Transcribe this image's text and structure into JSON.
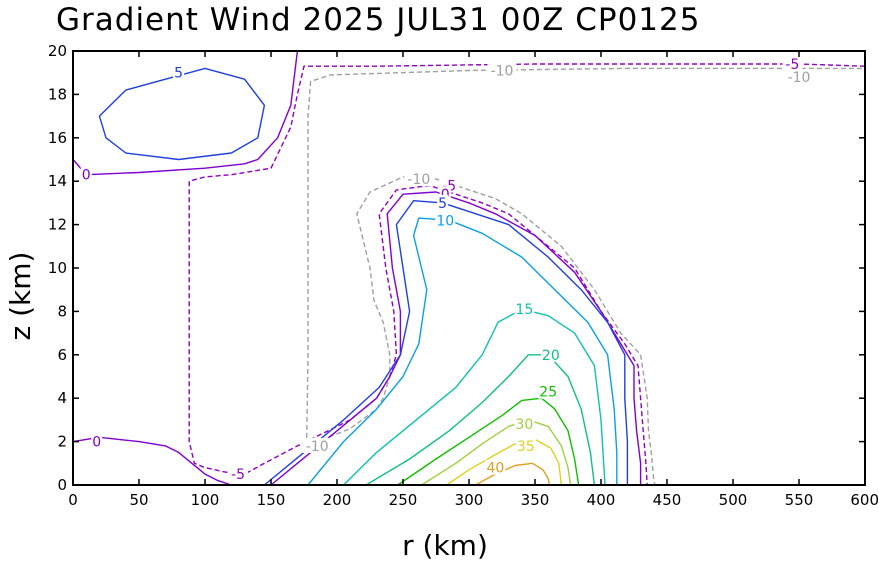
{
  "title": "Gradient Wind 2025 JUL31 00Z   CP0125",
  "chart_data": {
    "type": "contour",
    "title": "Gradient Wind 2025 JUL31 00Z   CP0125",
    "xlabel": "r (km)",
    "ylabel": "z (km)",
    "xlim": [
      0,
      600
    ],
    "ylim": [
      0,
      20
    ],
    "xticks": [
      "0",
      "50",
      "100",
      "150",
      "200",
      "250",
      "300",
      "350",
      "400",
      "450",
      "500",
      "550",
      "600"
    ],
    "yticks": [
      "0",
      "2",
      "4",
      "6",
      "8",
      "10",
      "12",
      "14",
      "16",
      "18",
      "20"
    ],
    "grid": false,
    "contours": [
      {
        "level": -10,
        "label": "-10",
        "color": "#a0a0a0",
        "dashed": true,
        "paths": [
          [
            [
              177,
              1.8
            ],
            [
              178,
              6
            ],
            [
              178,
              10
            ],
            [
              178,
              14
            ],
            [
              178,
              17
            ],
            [
              180,
              18.6
            ],
            [
              195,
              18.9
            ],
            [
              300,
              19.1
            ],
            [
              420,
              19.2
            ],
            [
              500,
              19.2
            ],
            [
              600,
              19.2
            ]
          ],
          [
            [
              177,
              1.8
            ],
            [
              210,
              2.6
            ],
            [
              230,
              3.5
            ],
            [
              235,
              4
            ],
            [
              240,
              5
            ],
            [
              240,
              6
            ],
            [
              235,
              7.5
            ],
            [
              228,
              8.5
            ],
            [
              225,
              10
            ],
            [
              215,
              12.5
            ],
            [
              225,
              13.5
            ],
            [
              250,
              14.2
            ],
            [
              275,
              14.1
            ],
            [
              300,
              13.6
            ],
            [
              320,
              13.2
            ],
            [
              340,
              12.5
            ],
            [
              370,
              11
            ],
            [
              395,
              9
            ],
            [
              415,
              7
            ],
            [
              430,
              6
            ],
            [
              435,
              4
            ],
            [
              436,
              2.5
            ],
            [
              438,
              1.5
            ],
            [
              440,
              0.2
            ],
            [
              441,
              0
            ]
          ]
        ]
      },
      {
        "level": -5,
        "label": "-5",
        "color": "#9000c0",
        "dashed": true,
        "paths": [
          [
            [
              600,
              19.3
            ],
            [
              550,
              19.4
            ],
            [
              480,
              19.4
            ],
            [
              430,
              19.4
            ],
            [
              350,
              19.4
            ],
            [
              230,
              19.3
            ],
            [
              175,
              19.3
            ],
            [
              170,
              18
            ],
            [
              165,
              16.5
            ],
            [
              150,
              14.6
            ],
            [
              120,
              14.3
            ],
            [
              100,
              14.2
            ],
            [
              88,
              14
            ],
            [
              88,
              10
            ],
            [
              88,
              6
            ],
            [
              88,
              2
            ],
            [
              92,
              1
            ],
            [
              100,
              0.8
            ],
            [
              115,
              0.6
            ],
            [
              130,
              0.5
            ],
            [
              145,
              1
            ],
            [
              170,
              1.8
            ],
            [
              210,
              3
            ],
            [
              230,
              4
            ],
            [
              240,
              5
            ],
            [
              245,
              6
            ],
            [
              243,
              8
            ],
            [
              237,
              10
            ],
            [
              232,
              12.5
            ],
            [
              245,
              13.6
            ],
            [
              270,
              13.8
            ],
            [
              290,
              13.4
            ],
            [
              310,
              13
            ],
            [
              330,
              12.5
            ],
            [
              350,
              11.5
            ],
            [
              380,
              10
            ],
            [
              400,
              8
            ],
            [
              418,
              6.5
            ],
            [
              428,
              5.5
            ],
            [
              430,
              4
            ],
            [
              432,
              2.5
            ],
            [
              434,
              1
            ],
            [
              435,
              0
            ]
          ]
        ]
      },
      {
        "level": 0,
        "label": "0",
        "color": "#8000d0",
        "dashed": false,
        "paths": [
          [
            [
              0,
              15
            ],
            [
              10,
              14.3
            ],
            [
              50,
              14.4
            ],
            [
              100,
              14.6
            ],
            [
              130,
              14.8
            ],
            [
              140,
              15
            ],
            [
              155,
              16
            ],
            [
              165,
              17.5
            ],
            [
              170,
              20
            ]
          ],
          [
            [
              0,
              2
            ],
            [
              20,
              2.2
            ],
            [
              50,
              2
            ],
            [
              70,
              1.8
            ],
            [
              80,
              1.5
            ],
            [
              90,
              1
            ],
            [
              100,
              0.5
            ],
            [
              110,
              0.2
            ],
            [
              120,
              0
            ]
          ],
          [
            [
              150,
              0
            ],
            [
              170,
              1
            ],
            [
              200,
              2.5
            ],
            [
              230,
              4
            ],
            [
              240,
              5
            ],
            [
              248,
              6
            ],
            [
              248,
              8
            ],
            [
              242,
              10
            ],
            [
              238,
              12.5
            ],
            [
              250,
              13.4
            ],
            [
              275,
              13.5
            ],
            [
              300,
              13
            ],
            [
              320,
              12.5
            ],
            [
              350,
              11.5
            ],
            [
              380,
              9.8
            ],
            [
              400,
              8
            ],
            [
              415,
              6.5
            ],
            [
              425,
              5.5
            ],
            [
              425,
              4
            ],
            [
              427,
              2.5
            ],
            [
              430,
              1
            ],
            [
              430,
              0
            ]
          ]
        ]
      },
      {
        "level": 5,
        "label": "5",
        "color": "#2040e0",
        "dashed": false,
        "paths": [
          [
            [
              70,
              18.7
            ],
            [
              40,
              18.2
            ],
            [
              20,
              17
            ],
            [
              25,
              16
            ],
            [
              40,
              15.3
            ],
            [
              80,
              15
            ],
            [
              120,
              15.3
            ],
            [
              140,
              16
            ],
            [
              145,
              17.5
            ],
            [
              130,
              18.7
            ],
            [
              100,
              19.2
            ],
            [
              70,
              18.7
            ]
          ],
          [
            [
              145,
              0
            ],
            [
              175,
              1.5
            ],
            [
              205,
              3
            ],
            [
              232,
              4.5
            ],
            [
              248,
              6
            ],
            [
              255,
              8
            ],
            [
              250,
              10
            ],
            [
              245,
              12
            ],
            [
              258,
              13.1
            ],
            [
              280,
              13
            ],
            [
              300,
              12.6
            ],
            [
              330,
              12
            ],
            [
              360,
              10.5
            ],
            [
              385,
              9
            ],
            [
              405,
              7.5
            ],
            [
              418,
              6
            ],
            [
              418,
              4
            ],
            [
              420,
              2
            ],
            [
              420,
              0
            ]
          ]
        ]
      },
      {
        "level": 10,
        "label": "10",
        "color": "#0aa0e8",
        "dashed": false,
        "paths": [
          [
            [
              178,
              0
            ],
            [
              205,
              2
            ],
            [
              230,
              3.5
            ],
            [
              250,
              5
            ],
            [
              262,
              6.5
            ],
            [
              268,
              9
            ],
            [
              258,
              11.5
            ],
            [
              262,
              12.3
            ],
            [
              285,
              12.2
            ],
            [
              310,
              11.6
            ],
            [
              340,
              10.5
            ],
            [
              365,
              9
            ],
            [
              390,
              7.5
            ],
            [
              405,
              6
            ],
            [
              410,
              3.5
            ],
            [
              412,
              1.5
            ],
            [
              412,
              0
            ]
          ]
        ]
      },
      {
        "level": 15,
        "label": "15",
        "color": "#10c0b0",
        "dashed": false,
        "paths": [
          [
            [
              205,
              0
            ],
            [
              230,
              1.5
            ],
            [
              260,
              3
            ],
            [
              290,
              4.5
            ],
            [
              310,
              6
            ],
            [
              322,
              7.5
            ],
            [
              340,
              8.1
            ],
            [
              360,
              7.8
            ],
            [
              380,
              7
            ],
            [
              395,
              5.5
            ],
            [
              400,
              3
            ],
            [
              403,
              0
            ]
          ]
        ]
      },
      {
        "level": 20,
        "label": "20",
        "color": "#10c080",
        "dashed": false,
        "paths": [
          [
            [
              222,
              0
            ],
            [
              255,
              1.2
            ],
            [
              285,
              2.5
            ],
            [
              310,
              3.8
            ],
            [
              330,
              5
            ],
            [
              345,
              6
            ],
            [
              360,
              6
            ],
            [
              375,
              5
            ],
            [
              385,
              3.5
            ],
            [
              392,
              1.5
            ],
            [
              395,
              0
            ]
          ]
        ]
      },
      {
        "level": 25,
        "label": "25",
        "color": "#10c000",
        "dashed": false,
        "paths": [
          [
            [
              246,
              0
            ],
            [
              275,
              1.2
            ],
            [
              300,
              2.2
            ],
            [
              325,
              3.2
            ],
            [
              340,
              3.9
            ],
            [
              355,
              4
            ],
            [
              365,
              3.5
            ],
            [
              375,
              2.5
            ],
            [
              380,
              1.2
            ],
            [
              383,
              0
            ]
          ]
        ]
      },
      {
        "level": 30,
        "label": "30",
        "color": "#a0d040",
        "dashed": false,
        "paths": [
          [
            [
              264,
              0
            ],
            [
              290,
              1
            ],
            [
              310,
              1.9
            ],
            [
              330,
              2.7
            ],
            [
              345,
              3
            ],
            [
              360,
              2.7
            ],
            [
              370,
              1.8
            ],
            [
              375,
              0.8
            ],
            [
              377,
              0
            ]
          ]
        ]
      },
      {
        "level": 35,
        "label": "35",
        "color": "#e0d020",
        "dashed": false,
        "paths": [
          [
            [
              283,
              0
            ],
            [
              300,
              0.7
            ],
            [
              320,
              1.4
            ],
            [
              335,
              1.9
            ],
            [
              350,
              2.1
            ],
            [
              362,
              1.7
            ],
            [
              368,
              1
            ],
            [
              370,
              0
            ]
          ]
        ]
      },
      {
        "level": 40,
        "label": "40",
        "color": "#e0a020",
        "dashed": false,
        "paths": [
          [
            [
              305,
              0
            ],
            [
              320,
              0.5
            ],
            [
              335,
              0.9
            ],
            [
              348,
              1
            ],
            [
              356,
              0.7
            ],
            [
              360,
              0.3
            ],
            [
              361,
              0
            ]
          ]
        ]
      }
    ],
    "contour_labels": [
      {
        "text": "5",
        "x": 80,
        "y": 19.0,
        "color": "#2040e0"
      },
      {
        "text": "0",
        "x": 10,
        "y": 14.3,
        "color": "#8000d0"
      },
      {
        "text": "-10",
        "x": 325,
        "y": 19.1,
        "color": "#a0a0a0"
      },
      {
        "text": "-5",
        "x": 545,
        "y": 19.4,
        "color": "#9000c0"
      },
      {
        "text": "-10",
        "x": 550,
        "y": 18.8,
        "color": "#a0a0a0"
      },
      {
        "text": "-10",
        "x": 262,
        "y": 14.1,
        "color": "#a0a0a0"
      },
      {
        "text": "-5",
        "x": 285,
        "y": 13.8,
        "color": "#9000c0"
      },
      {
        "text": "0",
        "x": 282,
        "y": 13.4,
        "color": "#8000d0"
      },
      {
        "text": "5",
        "x": 280,
        "y": 13.0,
        "color": "#2040e0"
      },
      {
        "text": "10",
        "x": 282,
        "y": 12.2,
        "color": "#0aa0e8"
      },
      {
        "text": "15",
        "x": 342,
        "y": 8.1,
        "color": "#10c0b0"
      },
      {
        "text": "20",
        "x": 362,
        "y": 6.0,
        "color": "#10c080"
      },
      {
        "text": "25",
        "x": 360,
        "y": 4.3,
        "color": "#10c000"
      },
      {
        "text": "30",
        "x": 342,
        "y": 2.8,
        "color": "#a0d040"
      },
      {
        "text": "35",
        "x": 343,
        "y": 1.8,
        "color": "#e0d020"
      },
      {
        "text": "40",
        "x": 320,
        "y": 0.8,
        "color": "#e0a020"
      },
      {
        "text": "0",
        "x": 18,
        "y": 2.0,
        "color": "#8000d0"
      },
      {
        "text": "-5",
        "x": 125,
        "y": 0.5,
        "color": "#9000c0"
      },
      {
        "text": "-10",
        "x": 185,
        "y": 1.8,
        "color": "#a0a0a0"
      }
    ]
  }
}
